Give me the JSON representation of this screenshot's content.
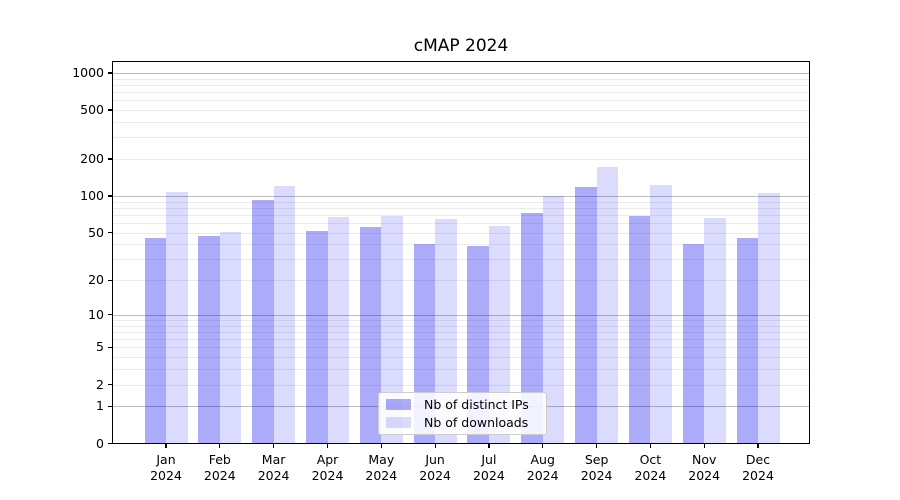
{
  "title": "cMAP 2024",
  "legend": {
    "items": [
      {
        "label": "Nb of distinct IPs",
        "color": "#aaaaf8",
        "fill": "rgba(0,0,240,0.33)"
      },
      {
        "label": "Nb of downloads",
        "color": "#dedefc",
        "fill": "rgba(0,0,240,0.14)"
      }
    ]
  },
  "axes": {
    "y_tick_labels": [
      "0",
      "1",
      "2",
      "5",
      "10",
      "20",
      "50",
      "100",
      "200",
      "500",
      "1000"
    ],
    "y_tick_values": [
      0,
      1,
      2,
      5,
      10,
      20,
      50,
      100,
      200,
      500,
      1000
    ],
    "x_tick_labels": [
      "Jan 2024",
      "Feb 2024",
      "Mar 2024",
      "Apr 2024",
      "May 2024",
      "Jun 2024",
      "Jul 2024",
      "Aug 2024",
      "Sep 2024",
      "Oct 2024",
      "Nov 2024",
      "Dec 2024"
    ]
  },
  "chart_data": {
    "type": "bar",
    "title": "cMAP 2024",
    "categories": [
      "Jan 2024",
      "Feb 2024",
      "Mar 2024",
      "Apr 2024",
      "May 2024",
      "Jun 2024",
      "Jul 2024",
      "Aug 2024",
      "Sep 2024",
      "Oct 2024",
      "Nov 2024",
      "Dec 2024"
    ],
    "series": [
      {
        "name": "Nb of distinct IPs",
        "color": "#aaaaf8",
        "fill": "rgba(0,0,240,0.33)",
        "values": [
          45,
          47,
          93,
          52,
          56,
          40,
          39,
          73,
          119,
          69,
          40,
          45
        ]
      },
      {
        "name": "Nb of downloads",
        "color": "#dedefc",
        "fill": "rgba(0,0,240,0.14)",
        "values": [
          108,
          51,
          121,
          67,
          68,
          65,
          57,
          100,
          171,
          124,
          66,
          106
        ]
      }
    ],
    "xlabel": "",
    "ylabel": "",
    "yscale": "log1p",
    "ylim": [
      0,
      1250
    ],
    "yticks": [
      0,
      1,
      2,
      5,
      10,
      20,
      50,
      100,
      200,
      500,
      1000
    ],
    "grid": "horizontal, log minor gridlines",
    "legend_position": "lower center"
  }
}
